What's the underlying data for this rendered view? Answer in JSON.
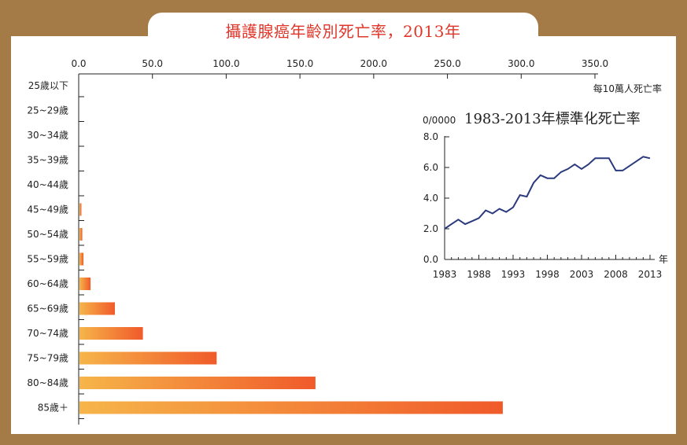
{
  "title": "攝護腺癌年齡別死亡率，2013年",
  "colors": {
    "background": "#a47a47",
    "bar_start": "#f6b54a",
    "bar_end": "#f05a2a",
    "line": "#2b3a7f",
    "title": "#e0362a"
  },
  "chart_data": [
    {
      "type": "bar",
      "orientation": "horizontal",
      "unit_label": "每10萬人死亡率",
      "xlim": [
        0,
        350
      ],
      "x_ticks": [
        "0.0",
        "50.0",
        "100.0",
        "150.0",
        "200.0",
        "250.0",
        "300.0",
        "350.0"
      ],
      "x_tick_values": [
        0,
        50,
        100,
        150,
        200,
        250,
        300,
        350
      ],
      "categories": [
        "25歲以下",
        "25~29歲",
        "30~34歲",
        "35~39歲",
        "40~44歲",
        "45~49歲",
        "50~54歲",
        "55~59歲",
        "60~64歲",
        "65~69歲",
        "70~74歲",
        "75~79歲",
        "80~84歲",
        "85歲＋"
      ],
      "values": [
        0,
        0,
        0,
        0,
        0.1,
        1.3,
        1.9,
        2.7,
        7.5,
        24.0,
        43.0,
        93.0,
        160.0,
        287.0
      ]
    },
    {
      "type": "line",
      "title": "1983-2013年標準化死亡率",
      "y_unit": "0/0000",
      "x_unit": "年",
      "xlim": [
        1983,
        2014
      ],
      "ylim": [
        0,
        8
      ],
      "x_ticks": [
        "1983",
        "1988",
        "1993",
        "1998",
        "2003",
        "2008",
        "2013"
      ],
      "x_tick_values": [
        1983,
        1988,
        1993,
        1998,
        2003,
        2008,
        2013
      ],
      "y_ticks": [
        "0.0",
        "2.0",
        "4.0",
        "6.0",
        "8.0"
      ],
      "y_tick_values": [
        0,
        2,
        4,
        6,
        8
      ],
      "x": [
        1983,
        1984,
        1985,
        1986,
        1987,
        1988,
        1989,
        1990,
        1991,
        1992,
        1993,
        1994,
        1995,
        1996,
        1997,
        1998,
        1999,
        2000,
        2001,
        2002,
        2003,
        2004,
        2005,
        2006,
        2007,
        2008,
        2009,
        2010,
        2011,
        2012,
        2013
      ],
      "y": [
        2.0,
        2.3,
        2.6,
        2.3,
        2.5,
        2.7,
        3.2,
        3.0,
        3.3,
        3.1,
        3.4,
        4.2,
        4.1,
        5.0,
        5.5,
        5.3,
        5.3,
        5.7,
        5.9,
        6.2,
        5.9,
        6.2,
        6.6,
        6.6,
        6.6,
        5.8,
        5.8,
        6.1,
        6.4,
        6.7,
        6.6
      ]
    }
  ]
}
